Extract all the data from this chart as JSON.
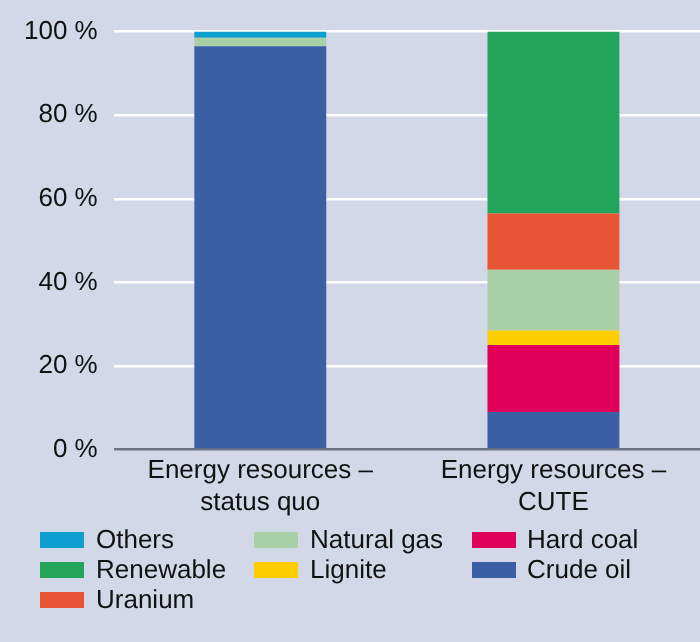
{
  "chart_data": {
    "type": "bar",
    "stacked": true,
    "categories": [
      "Energy resources – status quo",
      "Energy resources – CUTE"
    ],
    "series": [
      {
        "name": "Crude oil",
        "color": "#3a5fa5",
        "values": [
          96.5,
          9
        ]
      },
      {
        "name": "Hard coal",
        "color": "#e0005a",
        "values": [
          0,
          16
        ]
      },
      {
        "name": "Lignite",
        "color": "#fdcd00",
        "values": [
          0,
          3.5
        ]
      },
      {
        "name": "Natural gas",
        "color": "#a8cfa5",
        "values": [
          2,
          14.5
        ]
      },
      {
        "name": "Uranium",
        "color": "#e85535",
        "values": [
          0,
          13.5
        ]
      },
      {
        "name": "Renewable",
        "color": "#22a55a",
        "values": [
          0,
          43.5
        ]
      },
      {
        "name": "Others",
        "color": "#0d9fcf",
        "values": [
          1.5,
          0
        ]
      }
    ],
    "ylim": [
      0,
      100
    ],
    "yticks": [
      {
        "value": 0,
        "label": "0 %"
      },
      {
        "value": 20,
        "label": "20 %"
      },
      {
        "value": 40,
        "label": "40 %"
      },
      {
        "value": 60,
        "label": "60 %"
      },
      {
        "value": 80,
        "label": "80 %"
      },
      {
        "value": 100,
        "label": "100 %"
      }
    ],
    "grid": "y",
    "legend": "bottom"
  }
}
